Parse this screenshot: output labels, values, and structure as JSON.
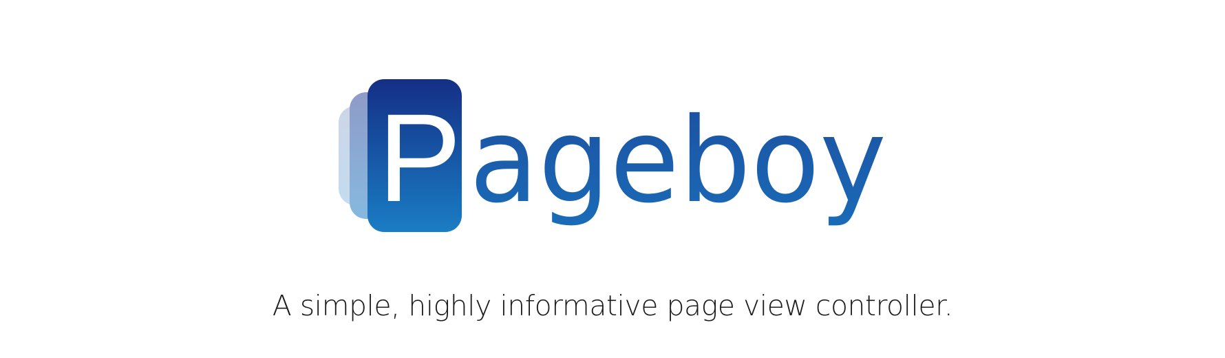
{
  "logo": {
    "initial": "P",
    "wordmark": "ageboy",
    "icon": "stacked-pages-icon",
    "colors": {
      "gradient_top": "#142f86",
      "gradient_bottom": "#1a7dc4",
      "back_page_far": "#c9d9eb",
      "back_page_near": "#8aa3cc",
      "text_light": "#ffffff"
    }
  },
  "tagline": "A simple, highly informative page view controller."
}
